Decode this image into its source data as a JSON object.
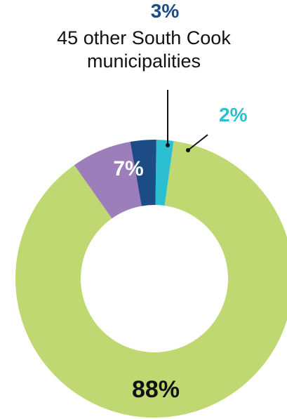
{
  "chart_data": {
    "type": "pie",
    "donut": true,
    "slices": [
      {
        "label": "",
        "value": 88,
        "value_label": "88%",
        "color": "#bfd872",
        "label_color": "#111111"
      },
      {
        "label": "",
        "value": 7,
        "value_label": "7%",
        "color": "#9c7ebb",
        "label_color": "#ffffff"
      },
      {
        "label": "45 other South Cook municipalities",
        "value": 3,
        "value_label": "3%",
        "color": "#1d4b85",
        "label_color": "#1d4b85"
      },
      {
        "label": "",
        "value": 2,
        "value_label": "2%",
        "color": "#2cbfd2",
        "label_color": "#2cbfd2"
      }
    ]
  }
}
